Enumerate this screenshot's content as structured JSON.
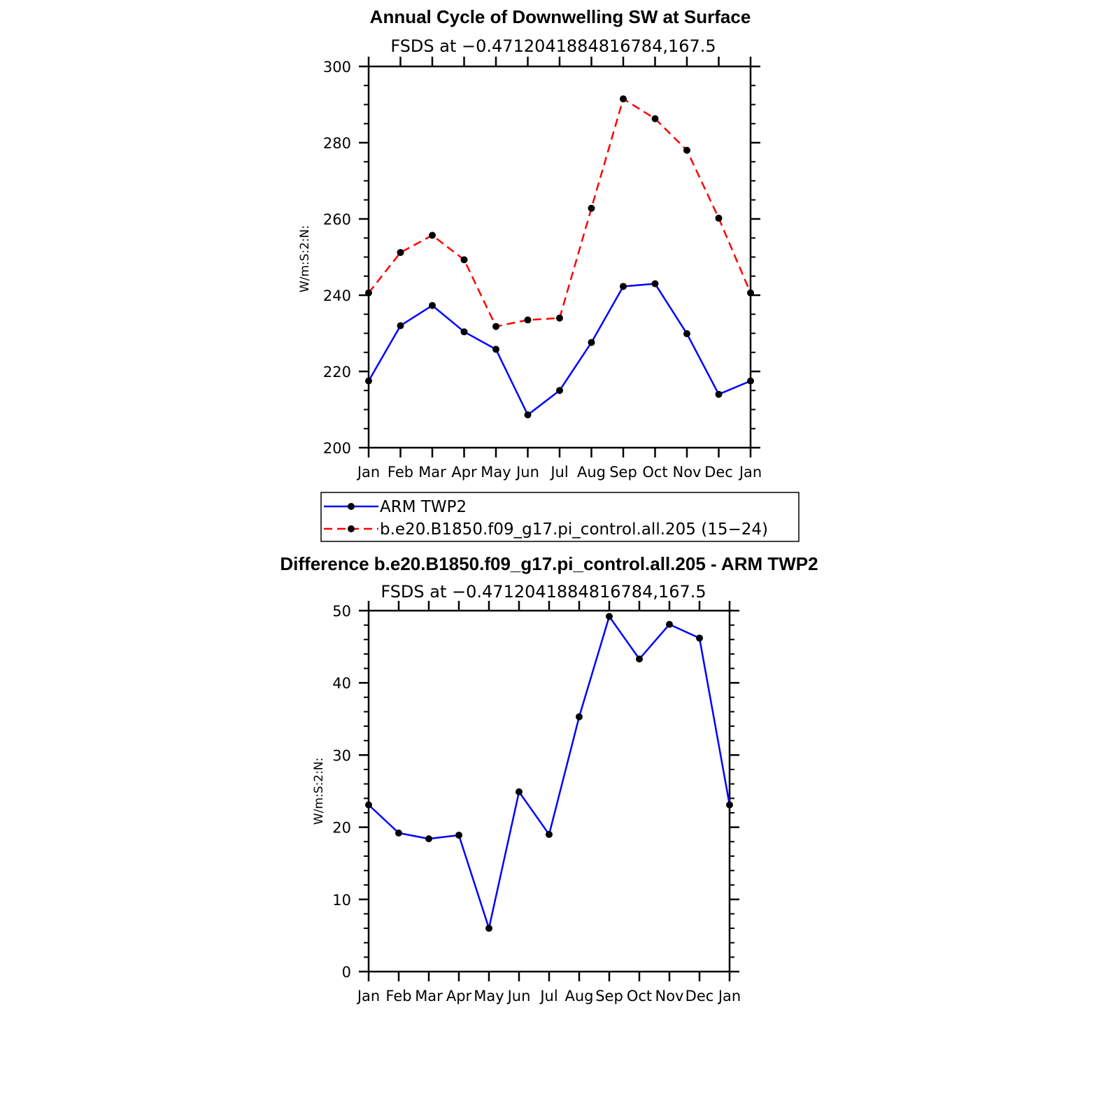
{
  "chart_data": [
    {
      "type": "line",
      "title": "Annual Cycle of Downwelling SW at Surface",
      "subtitle": "FSDS at −0.4712041884816784,167.5",
      "ylabel": "W/m:S:2:N:",
      "xlabel": "",
      "categories": [
        "Jan",
        "Feb",
        "Mar",
        "Apr",
        "May",
        "Jun",
        "Jul",
        "Aug",
        "Sep",
        "Oct",
        "Nov",
        "Dec",
        "Jan"
      ],
      "ylim": [
        200,
        300
      ],
      "yticks": [
        "200",
        "220",
        "240",
        "260",
        "280",
        "300"
      ],
      "grid": false,
      "legend_position": "bottom",
      "series": [
        {
          "name": "ARM TWP2",
          "color": "#0000ff",
          "dash": "solid",
          "values": [
            217.5,
            232,
            237.3,
            230.4,
            225.8,
            208.6,
            215,
            227.6,
            242.3,
            243,
            229.9,
            214,
            217.5
          ]
        },
        {
          "name": "b.e20.B1850.f09_g17.pi_control.all.205 (15−24)",
          "color": "#ff0000",
          "dash": "dashed",
          "values": [
            240.6,
            251.2,
            255.7,
            249.3,
            231.8,
            233.5,
            234,
            262.8,
            291.5,
            286.3,
            278,
            260.2,
            240.6
          ]
        }
      ]
    },
    {
      "type": "line",
      "title": "Difference b.e20.B1850.f09_g17.pi_control.all.205 - ARM TWP2",
      "subtitle": "FSDS at −0.4712041884816784,167.5",
      "ylabel": "W/m:S:2:N:",
      "xlabel": "",
      "categories": [
        "Jan",
        "Feb",
        "Mar",
        "Apr",
        "May",
        "Jun",
        "Jul",
        "Aug",
        "Sep",
        "Oct",
        "Nov",
        "Dec",
        "Jan"
      ],
      "ylim": [
        0,
        50
      ],
      "yticks": [
        "0",
        "10",
        "20",
        "30",
        "40",
        "50"
      ],
      "grid": false,
      "series": [
        {
          "color": "#0000ff",
          "dash": "solid",
          "values": [
            23.1,
            19.2,
            18.4,
            18.9,
            6,
            24.9,
            19,
            35.3,
            49.2,
            43.3,
            48.1,
            46.2,
            23.1
          ]
        }
      ]
    }
  ]
}
